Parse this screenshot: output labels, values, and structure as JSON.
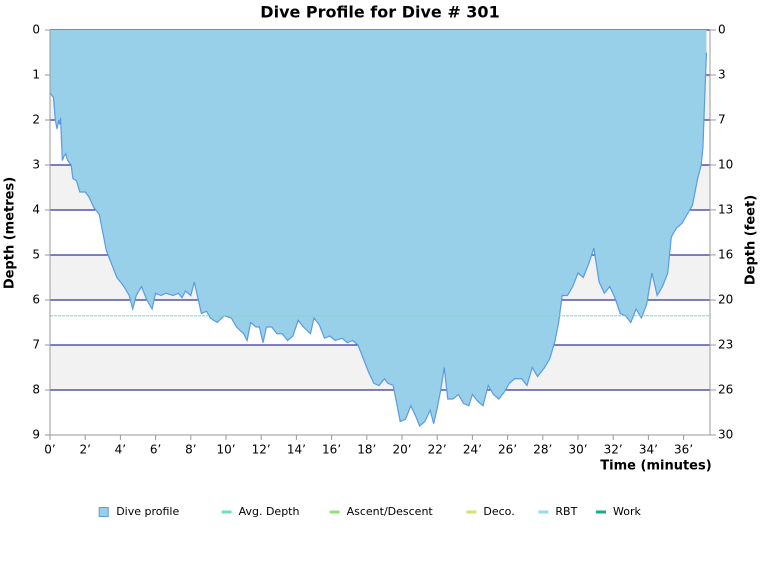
{
  "chart_data": {
    "type": "area",
    "title": "Dive Profile for Dive # 301",
    "x_label": "Time (minutes)",
    "y_label": "Depth (metres)",
    "y2_label": "Depth (feet)",
    "xlim": [
      0,
      37.5
    ],
    "ylim": [
      0,
      9
    ],
    "y2lim": [
      0,
      29.53
    ],
    "xticks": [
      {
        "value": 0,
        "label": "0’"
      },
      {
        "value": 2,
        "label": "2’"
      },
      {
        "value": 4,
        "label": "4’"
      },
      {
        "value": 6,
        "label": "6’"
      },
      {
        "value": 8,
        "label": "8’"
      },
      {
        "value": 10,
        "label": "10’"
      },
      {
        "value": 12,
        "label": "12’"
      },
      {
        "value": 14,
        "label": "14’"
      },
      {
        "value": 16,
        "label": "16’"
      },
      {
        "value": 18,
        "label": "18’"
      },
      {
        "value": 20,
        "label": "20’"
      },
      {
        "value": 22,
        "label": "22’"
      },
      {
        "value": 24,
        "label": "24’"
      },
      {
        "value": 26,
        "label": "26’"
      },
      {
        "value": 28,
        "label": "28’"
      },
      {
        "value": 30,
        "label": "30’"
      },
      {
        "value": 32,
        "label": "32’"
      },
      {
        "value": 34,
        "label": "34’"
      },
      {
        "value": 36,
        "label": "36’"
      }
    ],
    "yticks": [
      0,
      1,
      2,
      3,
      4,
      5,
      6,
      7,
      8,
      9
    ],
    "y2ticks": [
      0,
      {
        "value": 3.28,
        "label": "3"
      },
      {
        "value": 6.56,
        "label": "7"
      },
      {
        "value": 9.84,
        "label": "10"
      },
      {
        "value": 13.12,
        "label": "13"
      },
      {
        "value": 16.4,
        "label": "16"
      },
      {
        "value": 19.69,
        "label": "20"
      },
      {
        "value": 22.97,
        "label": "23"
      },
      {
        "value": 26.25,
        "label": "26"
      },
      {
        "value": 29.53,
        "label": "30"
      }
    ],
    "inverted_y": true,
    "grid": true,
    "x": [
      0,
      0.2,
      0.3,
      0.4,
      0.5,
      0.55,
      0.6,
      0.7,
      0.8,
      0.9,
      1.0,
      1.2,
      1.3,
      1.5,
      1.7,
      2.0,
      2.2,
      2.5,
      2.8,
      3.0,
      3.2,
      3.5,
      3.8,
      4.2,
      4.5,
      4.7,
      4.9,
      5.2,
      5.5,
      5.8,
      6.0,
      6.3,
      6.6,
      7.0,
      7.3,
      7.5,
      7.7,
      8.0,
      8.2,
      8.4,
      8.6,
      8.9,
      9.1,
      9.5,
      9.9,
      10.3,
      10.6,
      11.0,
      11.2,
      11.4,
      11.7,
      11.9,
      12.1,
      12.3,
      12.6,
      12.9,
      13.2,
      13.5,
      13.8,
      14.1,
      14.4,
      14.8,
      15.0,
      15.3,
      15.6,
      15.9,
      16.2,
      16.6,
      16.9,
      17.2,
      17.5,
      17.8,
      18.1,
      18.4,
      18.7,
      19.0,
      19.2,
      19.5,
      19.7,
      19.9,
      20.2,
      20.5,
      20.8,
      21.0,
      21.3,
      21.6,
      21.8,
      22.0,
      22.2,
      22.4,
      22.6,
      22.9,
      23.2,
      23.5,
      23.8,
      24.0,
      24.3,
      24.6,
      24.9,
      25.2,
      25.5,
      25.8,
      26.1,
      26.4,
      26.8,
      27.1,
      27.4,
      27.7,
      28.1,
      28.4,
      28.7,
      28.9,
      29.1,
      29.4,
      29.7,
      30.0,
      30.3,
      30.6,
      30.9,
      31.2,
      31.5,
      31.8,
      32.1,
      32.4,
      32.7,
      33.0,
      33.3,
      33.6,
      33.9,
      34.2,
      34.5,
      34.8,
      35.1,
      35.3,
      35.6,
      35.9,
      36.2,
      36.5,
      36.8,
      37.0,
      37.1,
      37.2,
      37.3
    ],
    "series": [
      {
        "name": "Dive profile",
        "color": "#98cfe9",
        "values": [
          1.4,
          1.5,
          2.0,
          2.2,
          2.0,
          2.1,
          1.95,
          2.9,
          2.8,
          2.75,
          2.9,
          3.0,
          3.3,
          3.35,
          3.6,
          3.6,
          3.7,
          3.95,
          4.1,
          4.5,
          4.9,
          5.2,
          5.5,
          5.7,
          5.9,
          6.2,
          5.9,
          5.7,
          6.0,
          6.2,
          5.85,
          5.9,
          5.85,
          5.9,
          5.85,
          5.95,
          5.8,
          5.9,
          5.6,
          5.95,
          6.3,
          6.25,
          6.4,
          6.5,
          6.35,
          6.4,
          6.6,
          6.75,
          6.9,
          6.5,
          6.6,
          6.6,
          6.95,
          6.6,
          6.6,
          6.75,
          6.75,
          6.9,
          6.8,
          6.45,
          6.6,
          6.75,
          6.4,
          6.55,
          6.85,
          6.8,
          6.9,
          6.85,
          6.95,
          6.9,
          7.0,
          7.3,
          7.6,
          7.85,
          7.9,
          7.75,
          7.85,
          7.9,
          8.3,
          8.7,
          8.65,
          8.35,
          8.6,
          8.8,
          8.7,
          8.45,
          8.75,
          8.4,
          8.0,
          7.5,
          8.2,
          8.2,
          8.1,
          8.3,
          8.35,
          8.1,
          8.25,
          8.35,
          7.9,
          8.1,
          8.2,
          8.05,
          7.85,
          7.75,
          7.75,
          7.9,
          7.5,
          7.7,
          7.5,
          7.3,
          6.9,
          6.5,
          5.9,
          5.9,
          5.7,
          5.4,
          5.5,
          5.2,
          4.85,
          5.6,
          5.85,
          5.7,
          5.95,
          6.3,
          6.35,
          6.5,
          6.2,
          6.4,
          6.1,
          5.4,
          5.9,
          5.7,
          5.4,
          4.6,
          4.4,
          4.3,
          4.1,
          3.9,
          3.3,
          3.0,
          2.6,
          1.5,
          0.5
        ]
      }
    ],
    "avg_depth": 6.35,
    "legend": [
      {
        "name": "Dive profile",
        "color": "#98cfe9"
      },
      {
        "name": "Avg. Depth",
        "color": "#6fe0b8"
      },
      {
        "name": "Ascent/Descent",
        "color": "#8fe078"
      },
      {
        "name": "Deco.",
        "color": "#d8e070"
      },
      {
        "name": "RBT",
        "color": "#96d8f0"
      },
      {
        "name": "Work",
        "color": "#1eaa88"
      }
    ]
  }
}
